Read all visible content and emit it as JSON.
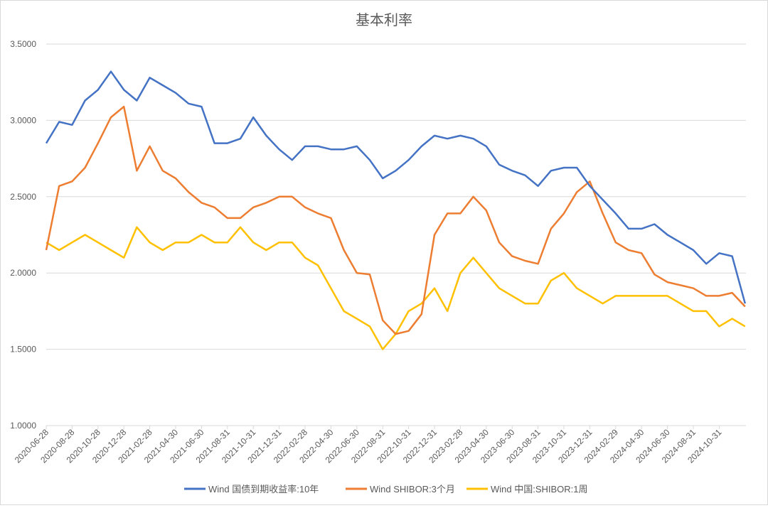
{
  "chart_data": {
    "type": "line",
    "title": "基本利率",
    "xlabel": "",
    "ylabel": "",
    "ylim": [
      1.0,
      3.5
    ],
    "yticks": [
      "1.0000",
      "1.5000",
      "2.0000",
      "2.5000",
      "3.0000",
      "3.5000"
    ],
    "ytick_values": [
      1.0,
      1.5,
      2.0,
      2.5,
      3.0,
      3.5
    ],
    "grid": true,
    "legend_position": "bottom",
    "xtick_labels": [
      "2020-06-28",
      "2020-08-28",
      "2020-10-28",
      "2020-12-28",
      "2021-02-28",
      "2021-04-30",
      "2021-06-30",
      "2021-08-31",
      "2021-10-31",
      "2021-12-31",
      "2022-02-28",
      "2022-04-30",
      "2022-06-30",
      "2022-08-31",
      "2022-10-31",
      "2022-12-31",
      "2023-02-28",
      "2023-04-30",
      "2023-06-30",
      "2023-08-31",
      "2023-10-31",
      "2023-12-31",
      "2024-02-29",
      "2024-04-30",
      "2024-06-30",
      "2024-08-31",
      "2024-10-31"
    ],
    "x": [
      "2020-06",
      "2020-07",
      "2020-08",
      "2020-09",
      "2020-10",
      "2020-11",
      "2020-12",
      "2021-01",
      "2021-02",
      "2021-03",
      "2021-04",
      "2021-05",
      "2021-06",
      "2021-07",
      "2021-08",
      "2021-09",
      "2021-10",
      "2021-11",
      "2021-12",
      "2022-01",
      "2022-02",
      "2022-03",
      "2022-04",
      "2022-05",
      "2022-06",
      "2022-07",
      "2022-08",
      "2022-09",
      "2022-10",
      "2022-11",
      "2022-12",
      "2023-01",
      "2023-02",
      "2023-03",
      "2023-04",
      "2023-05",
      "2023-06",
      "2023-07",
      "2023-08",
      "2023-09",
      "2023-10",
      "2023-11",
      "2023-12",
      "2024-01",
      "2024-02",
      "2024-03",
      "2024-04",
      "2024-05",
      "2024-06",
      "2024-07",
      "2024-08",
      "2024-09",
      "2024-10",
      "2024-11",
      "2024-12"
    ],
    "series": [
      {
        "name": "Wind 国债到期收益率:10年",
        "color": "#4472c4",
        "values": [
          2.85,
          2.99,
          2.97,
          3.13,
          3.2,
          3.32,
          3.2,
          3.13,
          3.28,
          3.23,
          3.18,
          3.11,
          3.09,
          2.85,
          2.85,
          2.88,
          3.02,
          2.9,
          2.81,
          2.74,
          2.83,
          2.83,
          2.81,
          2.81,
          2.83,
          2.74,
          2.62,
          2.67,
          2.74,
          2.83,
          2.9,
          2.88,
          2.9,
          2.88,
          2.83,
          2.71,
          2.67,
          2.64,
          2.57,
          2.67,
          2.69,
          2.69,
          2.57,
          2.48,
          2.39,
          2.29,
          2.29,
          2.32,
          2.25,
          2.2,
          2.15,
          2.06,
          2.13,
          2.11,
          1.8
        ]
      },
      {
        "name": "Wind SHIBOR:3个月",
        "color": "#ed7d31",
        "values": [
          2.15,
          2.57,
          2.6,
          2.69,
          2.85,
          3.02,
          3.09,
          2.67,
          2.83,
          2.67,
          2.62,
          2.53,
          2.46,
          2.43,
          2.36,
          2.36,
          2.43,
          2.46,
          2.5,
          2.5,
          2.43,
          2.39,
          2.36,
          2.15,
          2.0,
          1.99,
          1.69,
          1.6,
          1.62,
          1.73,
          2.25,
          2.39,
          2.39,
          2.5,
          2.41,
          2.2,
          2.11,
          2.08,
          2.06,
          2.29,
          2.39,
          2.53,
          2.6,
          2.39,
          2.2,
          2.15,
          2.13,
          1.99,
          1.94,
          1.92,
          1.9,
          1.85,
          1.85,
          1.87,
          1.78
        ]
      },
      {
        "name": "Wind 中国:SHIBOR:1周",
        "color": "#ffc000",
        "values": [
          2.2,
          2.15,
          2.2,
          2.25,
          2.2,
          2.15,
          2.1,
          2.3,
          2.2,
          2.15,
          2.2,
          2.2,
          2.25,
          2.2,
          2.2,
          2.3,
          2.2,
          2.15,
          2.2,
          2.2,
          2.1,
          2.05,
          1.9,
          1.75,
          1.7,
          1.65,
          1.5,
          1.6,
          1.75,
          1.8,
          1.9,
          1.75,
          2.0,
          2.1,
          2.0,
          1.9,
          1.85,
          1.8,
          1.8,
          1.95,
          2.0,
          1.9,
          1.85,
          1.8,
          1.85,
          1.85,
          1.85,
          1.85,
          1.85,
          1.8,
          1.75,
          1.75,
          1.65,
          1.7,
          1.65
        ]
      }
    ]
  }
}
